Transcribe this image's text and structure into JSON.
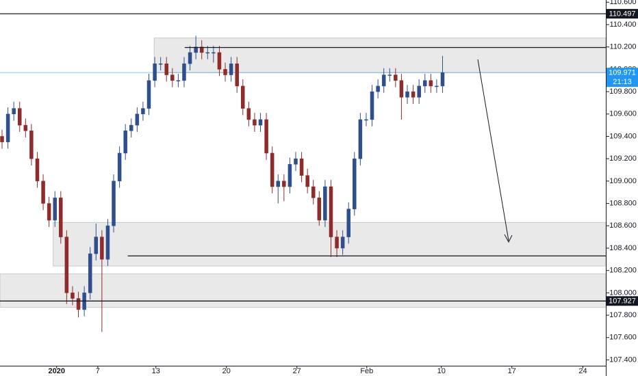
{
  "chart_data": {
    "type": "candlestick",
    "up_color": "#2e4f8c",
    "down_color": "#8e2b2b",
    "open": [
      109.4,
      109.35,
      109.6,
      109.65,
      109.5,
      109.45,
      109.2,
      109.0,
      108.8,
      108.65,
      108.85,
      108.5,
      108.0,
      107.95,
      107.85,
      108.0,
      108.35,
      108.5,
      108.3,
      108.6,
      109.0,
      109.25,
      109.45,
      109.5,
      109.6,
      109.65,
      109.9,
      110.05,
      110.05,
      109.95,
      109.9,
      109.9,
      110.05,
      110.15,
      110.2,
      110.15,
      110.15,
      110.15,
      110.0,
      109.95,
      110.05,
      109.85,
      109.65,
      109.55,
      109.5,
      109.55,
      109.25,
      108.95,
      109.0,
      108.95,
      109.15,
      109.2,
      109.05,
      108.95,
      108.85,
      108.65,
      108.95,
      108.5,
      108.4,
      108.5,
      108.75,
      109.2,
      109.55,
      109.55,
      109.8,
      109.85,
      109.95,
      109.95,
      109.9,
      109.75,
      109.8,
      109.75,
      109.85,
      109.9,
      109.85,
      109.85
    ],
    "high": [
      109.46,
      109.66,
      109.71,
      109.71,
      109.56,
      109.51,
      109.26,
      109.06,
      108.86,
      108.91,
      108.91,
      108.56,
      108.06,
      108.01,
      108.06,
      108.41,
      108.62,
      108.56,
      108.66,
      109.06,
      109.31,
      109.51,
      109.56,
      109.66,
      109.71,
      109.96,
      110.11,
      110.11,
      110.11,
      110.01,
      109.96,
      110.11,
      110.21,
      110.3,
      110.26,
      110.21,
      110.21,
      110.21,
      110.06,
      110.11,
      110.11,
      109.91,
      109.71,
      109.61,
      109.61,
      109.61,
      109.31,
      109.06,
      109.06,
      109.21,
      109.26,
      109.26,
      109.11,
      109.01,
      108.91,
      109.01,
      109.01,
      108.56,
      108.56,
      108.81,
      109.26,
      109.61,
      109.61,
      109.86,
      109.91,
      110.01,
      110.01,
      110.01,
      109.96,
      109.86,
      109.86,
      109.91,
      109.96,
      109.96,
      109.91,
      110.12
    ],
    "low": [
      109.29,
      109.29,
      109.54,
      109.44,
      109.39,
      109.14,
      108.94,
      108.74,
      108.59,
      108.59,
      108.44,
      107.9,
      107.89,
      107.78,
      107.79,
      107.94,
      108.29,
      107.65,
      108.24,
      108.54,
      108.94,
      109.19,
      109.39,
      109.44,
      109.54,
      109.59,
      109.84,
      109.99,
      109.89,
      109.84,
      109.84,
      109.84,
      109.99,
      110.09,
      110.09,
      110.09,
      110.06,
      109.94,
      109.89,
      109.89,
      109.79,
      109.59,
      109.49,
      109.44,
      109.44,
      109.19,
      108.89,
      108.8,
      108.82,
      108.89,
      109.09,
      108.99,
      108.89,
      108.79,
      108.6,
      108.59,
      108.32,
      108.32,
      108.34,
      108.44,
      108.69,
      109.14,
      109.49,
      109.49,
      109.74,
      109.79,
      109.89,
      109.84,
      109.55,
      109.69,
      109.69,
      109.69,
      109.79,
      109.79,
      109.79,
      109.79
    ],
    "close": [
      109.35,
      109.6,
      109.65,
      109.5,
      109.45,
      109.2,
      109.0,
      108.8,
      108.65,
      108.85,
      108.5,
      108.0,
      107.95,
      107.85,
      108.0,
      108.35,
      108.5,
      108.3,
      108.6,
      109.0,
      109.25,
      109.45,
      109.5,
      109.6,
      109.65,
      109.9,
      110.05,
      110.05,
      109.95,
      109.9,
      109.9,
      110.05,
      110.15,
      110.2,
      110.15,
      110.15,
      110.15,
      110.0,
      109.95,
      110.05,
      109.85,
      109.65,
      109.55,
      109.5,
      109.55,
      109.25,
      108.95,
      109.0,
      108.95,
      109.15,
      109.2,
      109.05,
      108.95,
      108.85,
      108.65,
      108.95,
      108.5,
      108.4,
      108.5,
      108.75,
      109.2,
      109.55,
      109.55,
      109.8,
      109.85,
      109.95,
      109.95,
      109.9,
      109.75,
      109.8,
      109.75,
      109.85,
      109.9,
      109.85,
      109.85,
      109.97
    ],
    "ylim": [
      107.36,
      110.62
    ],
    "yticks": [
      {
        "value": 110.6,
        "label": "110.600"
      },
      {
        "value": 110.4,
        "label": "110.400"
      },
      {
        "value": 110.2,
        "label": "110.200"
      },
      {
        "value": 110.0,
        "label": "110.000"
      },
      {
        "value": 109.8,
        "label": "109.800"
      },
      {
        "value": 109.6,
        "label": "109.600"
      },
      {
        "value": 109.4,
        "label": "109.400"
      },
      {
        "value": 109.2,
        "label": "109.200"
      },
      {
        "value": 109.0,
        "label": "109.000"
      },
      {
        "value": 108.8,
        "label": "108.800"
      },
      {
        "value": 108.6,
        "label": "108.600"
      },
      {
        "value": 108.4,
        "label": "108.400"
      },
      {
        "value": 108.2,
        "label": "108.200"
      },
      {
        "value": 108.0,
        "label": "108.000"
      },
      {
        "value": 107.8,
        "label": "107.800"
      },
      {
        "value": 107.6,
        "label": "107.600"
      },
      {
        "value": 107.4,
        "label": "107.400"
      }
    ],
    "xlim": [
      -0.35,
      102.8
    ],
    "xticks": [
      {
        "value": 9.3,
        "label": "2020"
      },
      {
        "value": 16.3,
        "label": "7"
      },
      {
        "value": 26.2,
        "label": "13"
      },
      {
        "value": 38.2,
        "label": "20"
      },
      {
        "value": 50.2,
        "label": "27"
      },
      {
        "value": 62.1,
        "label": "Feb"
      },
      {
        "value": 74.8,
        "label": "10"
      },
      {
        "value": 86.8,
        "label": "17"
      },
      {
        "value": 98.9,
        "label": "24"
      }
    ],
    "zones": [
      {
        "low": 109.97,
        "high": 110.28,
        "x_from": 25.9
      },
      {
        "low": 108.24,
        "high": 108.63,
        "x_from": 8.7
      },
      {
        "low": 107.87,
        "high": 108.17,
        "x_from": -0.35
      }
    ],
    "levels": [
      {
        "value": 110.497,
        "x_from": -0.35,
        "labeled": true
      },
      {
        "value": 110.195,
        "x_from": 31.1,
        "labeled": false
      },
      {
        "value": 108.33,
        "x_from": 21.4,
        "labeled": false
      },
      {
        "value": 107.927,
        "x_from": -0.35,
        "labeled": true
      }
    ],
    "current_price": {
      "value": 109.971,
      "countdown": "21:13",
      "color": "#2196f3"
    }
  }
}
